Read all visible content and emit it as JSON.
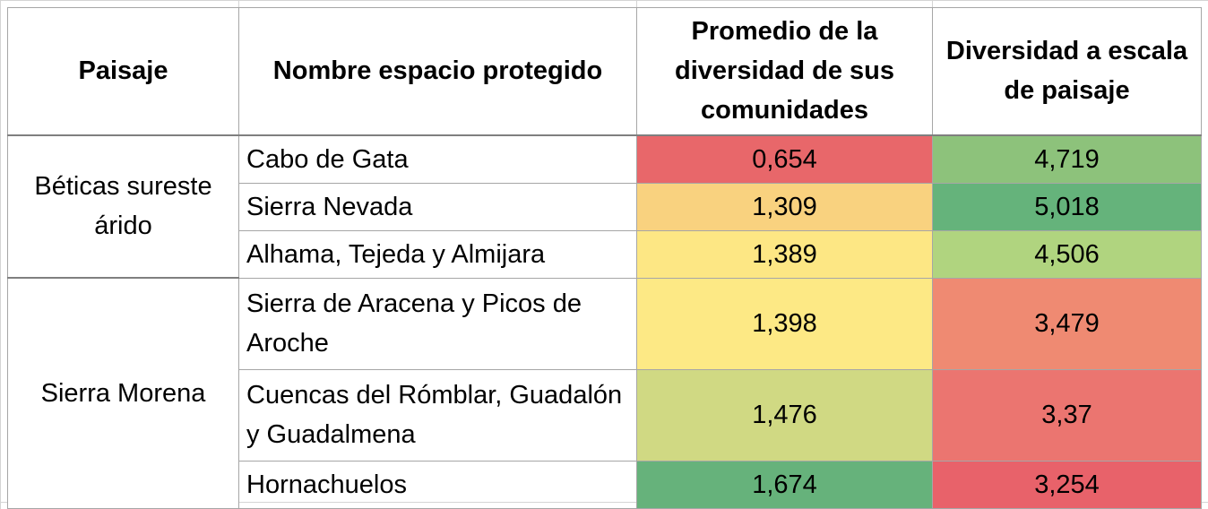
{
  "table": {
    "headers": {
      "paisaje": "Paisaje",
      "nombre": "Nombre espacio protegido",
      "promedio": "Promedio de la diversidad de sus comunidades",
      "diversidad": "Diversidad a escala de paisaje"
    },
    "groups": [
      {
        "name": "Béticas sureste árido"
      },
      {
        "name": "Sierra Morena"
      }
    ],
    "rows": [
      {
        "name": "Cabo de Gata",
        "promedio": "0,654",
        "diversidad": "4,719",
        "promedio_color": "#e8676a",
        "diversidad_color": "#8dc27b"
      },
      {
        "name": "Sierra Nevada",
        "promedio": "1,309",
        "diversidad": "5,018",
        "promedio_color": "#f9d27f",
        "diversidad_color": "#65b37b"
      },
      {
        "name": "Alhama, Tejeda y Almijara",
        "promedio": "1,389",
        "diversidad": "4,506",
        "promedio_color": "#fde784",
        "diversidad_color": "#b0d47f"
      },
      {
        "name": "Sierra de Aracena y Picos de Aroche",
        "promedio": "1,398",
        "diversidad": "3,479",
        "promedio_color": "#fde985",
        "diversidad_color": "#ef8a72"
      },
      {
        "name": "Cuencas del Rómblar, Guadalón y Guadalmena",
        "promedio": "1,476",
        "diversidad": "3,37",
        "promedio_color": "#d0d983",
        "diversidad_color": "#eb7570"
      },
      {
        "name": "Hornachuelos",
        "promedio": "1,674",
        "diversidad": "3,254",
        "promedio_color": "#66b27b",
        "diversidad_color": "#e8626a"
      }
    ]
  }
}
